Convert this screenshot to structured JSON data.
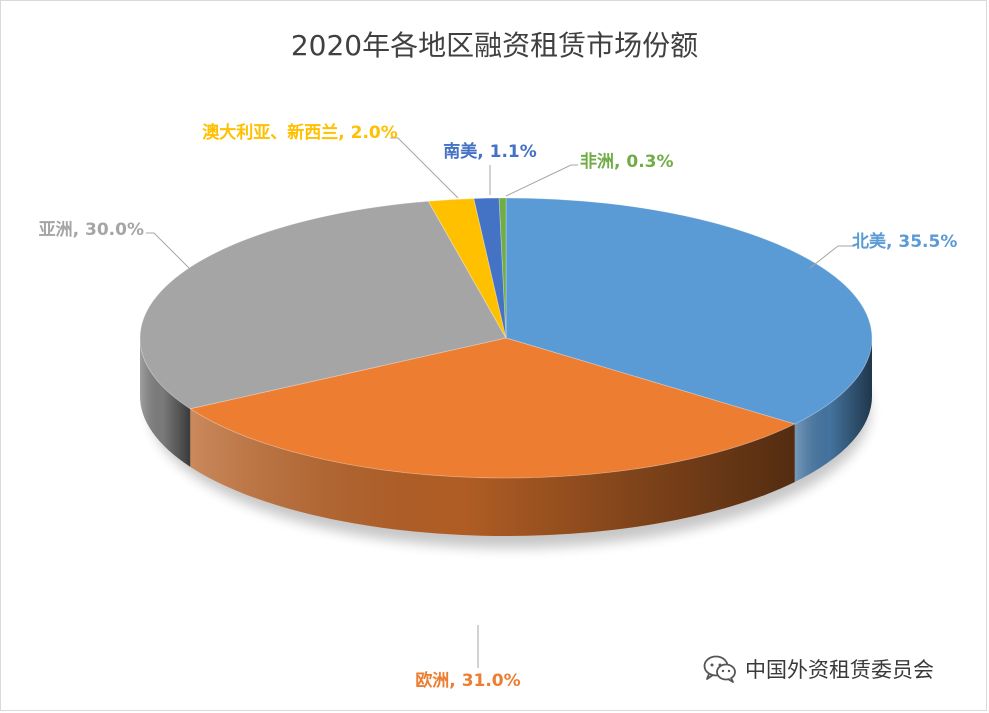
{
  "chart_data": {
    "type": "pie",
    "title": "2020年各地区融资租赁市场份额",
    "slices": [
      {
        "label": "北美",
        "value": 35.5,
        "color": "#5b9bd5",
        "text_color": "#5b9bd5",
        "label_text": "北美, 35.5%"
      },
      {
        "label": "欧洲",
        "value": 31.0,
        "color": "#ed7d31",
        "text_color": "#ed7d31",
        "label_text": "欧洲, 31.0%"
      },
      {
        "label": "亚洲",
        "value": 30.0,
        "color": "#a5a5a5",
        "text_color": "#a5a5a5",
        "label_text": "亚洲, 30.0%"
      },
      {
        "label": "澳大利亚、新西兰",
        "value": 2.0,
        "color": "#ffc000",
        "text_color": "#ffc000",
        "label_text": "澳大利亚、新西兰, 2.0%"
      },
      {
        "label": "南美",
        "value": 1.1,
        "color": "#4472c4",
        "text_color": "#4472c4",
        "label_text": "南美, 1.1%"
      },
      {
        "label": "非洲",
        "value": 0.3,
        "color": "#70ad47",
        "text_color": "#70ad47",
        "label_text": "非洲, 0.3%"
      }
    ],
    "style": "3d-pie",
    "legend": "none"
  },
  "watermark": {
    "text": "中国外资租赁委员会",
    "icon": "wechat-icon"
  }
}
